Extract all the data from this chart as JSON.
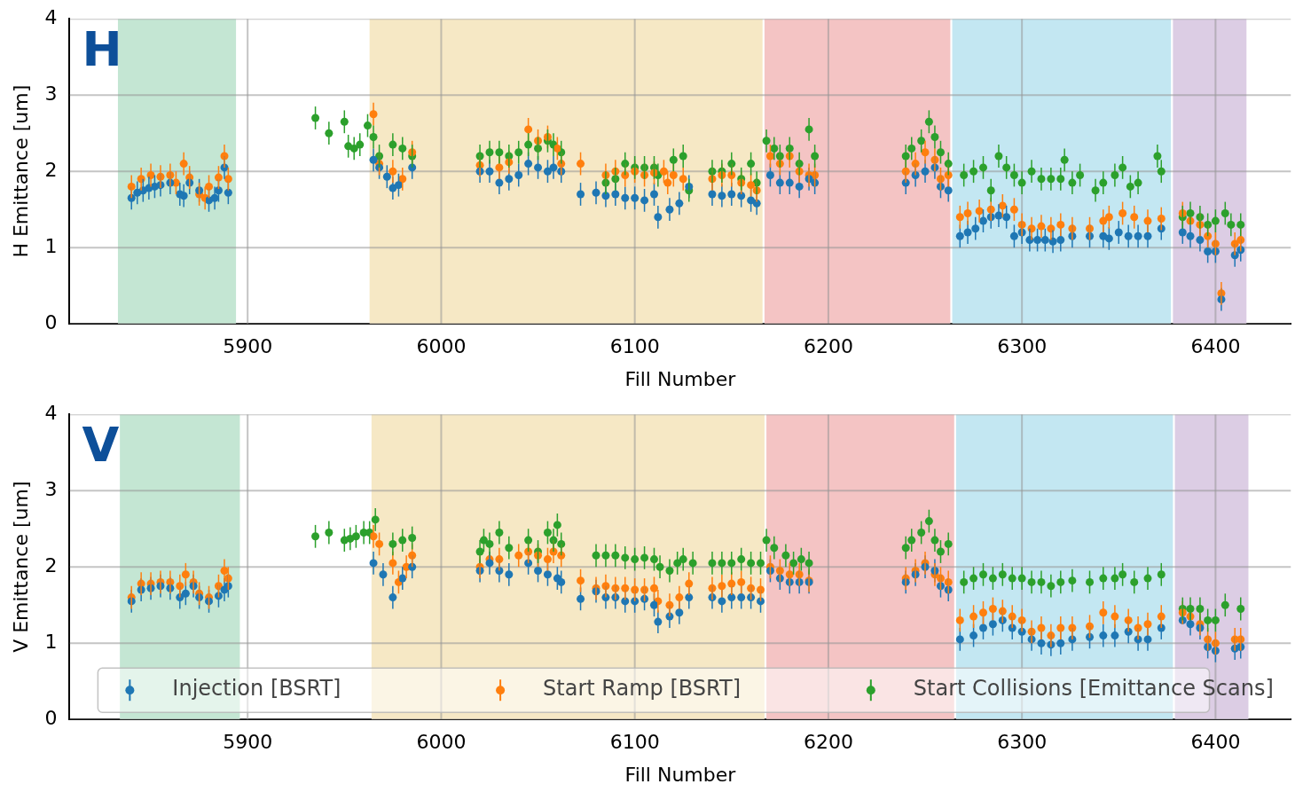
{
  "chart_data": [
    {
      "type": "scatter",
      "xlabel": "Fill Number",
      "ylabel": "H Emittance [um]",
      "annotations": [
        "H"
      ],
      "xlim": [
        5808,
        6439
      ],
      "xticks": [
        5900,
        6000,
        6100,
        6200,
        6300,
        6400
      ],
      "ylim": [
        0,
        4
      ],
      "yticks": [
        0,
        1,
        2,
        3,
        4
      ],
      "grid": true,
      "marker": "circle",
      "legend": false,
      "bands": [
        {
          "axis": "x",
          "from": 5833,
          "to": 5894,
          "color": "#c4e6d3"
        },
        {
          "axis": "x",
          "from": 5963,
          "to": 6166,
          "color": "#f6e8c5"
        },
        {
          "axis": "x",
          "from": 6167,
          "to": 6263,
          "color": "#f4c4c4"
        },
        {
          "axis": "x",
          "from": 6264,
          "to": 6377,
          "color": "#c3e7f2"
        },
        {
          "axis": "x",
          "from": 6378,
          "to": 6416,
          "color": "#dccde4"
        }
      ],
      "series": [
        {
          "color": "#1f77b4",
          "x": [
            5840,
            5843,
            5846,
            5849,
            5852,
            5855,
            5860,
            5865,
            5867,
            5870,
            5875,
            5880,
            5883,
            5885,
            5888,
            5890,
            5965,
            5968,
            5972,
            5975,
            5978,
            5985,
            6020,
            6025,
            6030,
            6035,
            6040,
            6045,
            6050,
            6055,
            6058,
            6062,
            6072,
            6080,
            6085,
            6090,
            6095,
            6100,
            6105,
            6110,
            6112,
            6118,
            6123,
            6128,
            6140,
            6145,
            6150,
            6155,
            6160,
            6163,
            6170,
            6175,
            6180,
            6185,
            6190,
            6193,
            6240,
            6245,
            6250,
            6255,
            6258,
            6262,
            6268,
            6272,
            6276,
            6280,
            6284,
            6288,
            6292,
            6296,
            6300,
            6304,
            6308,
            6312,
            6316,
            6320,
            6326,
            6335,
            6342,
            6345,
            6350,
            6355,
            6360,
            6365,
            6372,
            6383,
            6387,
            6392,
            6396,
            6400,
            6403,
            6410,
            6413
          ],
          "values": [
            1.65,
            1.72,
            1.75,
            1.78,
            1.8,
            1.82,
            1.85,
            1.7,
            1.68,
            1.85,
            1.75,
            1.62,
            1.65,
            1.75,
            2.05,
            1.72,
            2.15,
            2.05,
            1.93,
            1.78,
            1.82,
            2.05,
            2.0,
            2.0,
            1.85,
            1.9,
            1.95,
            2.1,
            2.05,
            2.0,
            2.05,
            2.0,
            1.7,
            1.72,
            1.68,
            1.7,
            1.65,
            1.65,
            1.62,
            1.7,
            1.4,
            1.5,
            1.58,
            1.8,
            1.7,
            1.68,
            1.7,
            1.68,
            1.62,
            1.58,
            1.95,
            1.85,
            1.85,
            1.8,
            1.9,
            1.85,
            1.85,
            1.95,
            2.0,
            2.05,
            1.8,
            1.75,
            1.15,
            1.2,
            1.25,
            1.35,
            1.4,
            1.42,
            1.4,
            1.15,
            1.2,
            1.1,
            1.1,
            1.1,
            1.08,
            1.1,
            1.15,
            1.15,
            1.15,
            1.12,
            1.2,
            1.15,
            1.15,
            1.15,
            1.25,
            1.2,
            1.15,
            1.1,
            0.95,
            0.95,
            0.32,
            0.9,
            0.97
          ],
          "errors": [
            0.15,
            0.15,
            0.15,
            0.15,
            0.15,
            0.15,
            0.15,
            0.15,
            0.15,
            0.15,
            0.15,
            0.15,
            0.15,
            0.15,
            0.15,
            0.15,
            0.15,
            0.15,
            0.15,
            0.15,
            0.15,
            0.15,
            0.15,
            0.15,
            0.15,
            0.15,
            0.15,
            0.15,
            0.15,
            0.15,
            0.15,
            0.15,
            0.15,
            0.15,
            0.15,
            0.15,
            0.15,
            0.15,
            0.15,
            0.15,
            0.15,
            0.15,
            0.15,
            0.15,
            0.15,
            0.15,
            0.15,
            0.15,
            0.15,
            0.15,
            0.15,
            0.15,
            0.15,
            0.15,
            0.15,
            0.15,
            0.15,
            0.15,
            0.15,
            0.15,
            0.15,
            0.15,
            0.15,
            0.15,
            0.15,
            0.15,
            0.15,
            0.15,
            0.15,
            0.15,
            0.15,
            0.15,
            0.15,
            0.15,
            0.15,
            0.15,
            0.15,
            0.15,
            0.15,
            0.15,
            0.15,
            0.15,
            0.15,
            0.15,
            0.15,
            0.15,
            0.15,
            0.15,
            0.15,
            0.15,
            0.15,
            0.15,
            0.15
          ]
        },
        {
          "color": "#ff7f0e",
          "x": [
            5840,
            5845,
            5850,
            5855,
            5860,
            5863,
            5867,
            5870,
            5875,
            5878,
            5880,
            5885,
            5888,
            5890,
            5965,
            5968,
            5975,
            5980,
            5985,
            6020,
            6030,
            6035,
            6045,
            6050,
            6055,
            6060,
            6062,
            6072,
            6085,
            6090,
            6095,
            6100,
            6105,
            6110,
            6115,
            6117,
            6120,
            6125,
            6140,
            6145,
            6150,
            6155,
            6160,
            6163,
            6170,
            6175,
            6180,
            6185,
            6190,
            6193,
            6240,
            6245,
            6250,
            6255,
            6258,
            6262,
            6268,
            6272,
            6278,
            6284,
            6290,
            6296,
            6300,
            6305,
            6310,
            6315,
            6320,
            6326,
            6335,
            6342,
            6345,
            6352,
            6358,
            6365,
            6372,
            6383,
            6387,
            6392,
            6396,
            6400,
            6403,
            6410,
            6413
          ],
          "values": [
            1.8,
            1.9,
            1.95,
            1.93,
            1.95,
            1.85,
            2.1,
            1.92,
            1.7,
            1.65,
            1.8,
            1.92,
            2.2,
            1.9,
            2.75,
            2.1,
            2.0,
            1.9,
            2.25,
            2.08,
            2.05,
            2.12,
            2.55,
            2.4,
            2.45,
            2.3,
            2.1,
            2.1,
            1.95,
            2.0,
            1.95,
            2.0,
            1.95,
            1.98,
            2.0,
            1.85,
            1.95,
            1.9,
            1.9,
            1.95,
            1.95,
            1.85,
            1.82,
            1.75,
            2.2,
            2.1,
            2.2,
            2.0,
            1.95,
            1.95,
            2.0,
            2.1,
            2.25,
            2.15,
            1.9,
            1.95,
            1.4,
            1.45,
            1.48,
            1.5,
            1.55,
            1.5,
            1.3,
            1.25,
            1.28,
            1.25,
            1.3,
            1.25,
            1.25,
            1.35,
            1.4,
            1.45,
            1.4,
            1.35,
            1.38,
            1.45,
            1.35,
            1.3,
            1.15,
            1.05,
            0.4,
            1.05,
            1.1
          ],
          "errors": [
            0.15,
            0.15,
            0.15,
            0.15,
            0.15,
            0.15,
            0.15,
            0.15,
            0.15,
            0.15,
            0.15,
            0.15,
            0.15,
            0.15,
            0.15,
            0.15,
            0.15,
            0.15,
            0.15,
            0.15,
            0.15,
            0.15,
            0.15,
            0.15,
            0.15,
            0.15,
            0.15,
            0.15,
            0.15,
            0.15,
            0.15,
            0.15,
            0.15,
            0.15,
            0.15,
            0.15,
            0.15,
            0.15,
            0.15,
            0.15,
            0.15,
            0.15,
            0.15,
            0.15,
            0.15,
            0.15,
            0.15,
            0.15,
            0.15,
            0.15,
            0.15,
            0.15,
            0.15,
            0.15,
            0.15,
            0.15,
            0.15,
            0.15,
            0.15,
            0.15,
            0.15,
            0.15,
            0.15,
            0.15,
            0.15,
            0.15,
            0.15,
            0.15,
            0.15,
            0.15,
            0.15,
            0.15,
            0.15,
            0.15,
            0.15,
            0.15,
            null,
            0.15,
            0.15,
            0.15,
            0.15,
            0.15,
            0.15
          ]
        },
        {
          "color": "#2ca02c",
          "x": [
            5935,
            5942,
            5950,
            5952,
            5955,
            5958,
            5962,
            5965,
            5968,
            5975,
            5980,
            5985,
            6020,
            6025,
            6030,
            6035,
            6040,
            6045,
            6050,
            6055,
            6058,
            6062,
            6085,
            6090,
            6095,
            6100,
            6105,
            6110,
            6112,
            6120,
            6125,
            6128,
            6140,
            6145,
            6150,
            6155,
            6160,
            6163,
            6168,
            6172,
            6175,
            6180,
            6185,
            6190,
            6193,
            6240,
            6243,
            6248,
            6252,
            6255,
            6258,
            6262,
            6270,
            6275,
            6280,
            6284,
            6288,
            6292,
            6296,
            6300,
            6305,
            6310,
            6315,
            6320,
            6322,
            6326,
            6330,
            6338,
            6342,
            6348,
            6352,
            6356,
            6360,
            6370,
            6372,
            6383,
            6387,
            6392,
            6396,
            6400,
            6405,
            6408,
            6413
          ],
          "values": [
            2.7,
            2.5,
            2.65,
            2.33,
            2.3,
            2.35,
            2.6,
            2.45,
            2.2,
            2.35,
            2.3,
            2.2,
            2.2,
            2.25,
            2.25,
            2.2,
            2.25,
            2.35,
            2.3,
            2.4,
            2.35,
            2.25,
            1.85,
            1.9,
            2.1,
            2.05,
            2.05,
            2.05,
            1.95,
            2.15,
            2.2,
            1.75,
            2.0,
            2.0,
            2.1,
            1.9,
            2.1,
            1.85,
            2.4,
            2.3,
            2.2,
            2.3,
            2.1,
            2.55,
            2.2,
            2.2,
            2.3,
            2.4,
            2.65,
            2.45,
            2.25,
            2.1,
            1.95,
            2.0,
            2.05,
            1.75,
            2.2,
            2.05,
            1.95,
            1.85,
            2.0,
            1.9,
            1.9,
            1.9,
            2.15,
            1.85,
            1.95,
            1.75,
            1.85,
            1.95,
            2.05,
            1.8,
            1.85,
            2.2,
            2.0,
            1.4,
            1.45,
            1.4,
            1.3,
            1.35,
            1.45,
            1.3,
            1.3
          ],
          "errors": [
            0.15,
            0.15,
            0.15,
            0.15,
            0.15,
            0.15,
            0.15,
            0.15,
            0.15,
            0.15,
            0.15,
            0.15,
            0.15,
            0.15,
            0.15,
            0.15,
            0.15,
            0.15,
            0.15,
            0.15,
            0.15,
            0.15,
            0.15,
            0.15,
            0.15,
            0.15,
            0.15,
            0.15,
            0.15,
            0.15,
            0.15,
            0.15,
            0.15,
            0.15,
            0.15,
            0.15,
            0.15,
            0.15,
            0.15,
            0.15,
            0.15,
            0.15,
            0.15,
            0.15,
            0.15,
            0.15,
            0.15,
            0.15,
            0.15,
            0.15,
            0.15,
            0.15,
            0.15,
            0.15,
            0.15,
            0.15,
            0.15,
            0.15,
            0.15,
            0.15,
            0.15,
            0.15,
            0.15,
            0.15,
            0.15,
            0.15,
            0.15,
            0.15,
            0.15,
            0.15,
            0.15,
            0.15,
            0.15,
            0.15,
            0.15,
            0.15,
            0.15,
            0.15,
            0.15,
            0.15,
            0.15,
            0.15,
            0.15
          ]
        }
      ]
    },
    {
      "type": "scatter",
      "xlabel": "Fill Number",
      "ylabel": "V Emittance [um]",
      "annotations": [
        "V"
      ],
      "xlim": [
        5808,
        6439
      ],
      "xticks": [
        5900,
        6000,
        6100,
        6200,
        6300,
        6400
      ],
      "ylim": [
        0,
        4
      ],
      "yticks": [
        0,
        1,
        2,
        3,
        4
      ],
      "grid": true,
      "marker": "circle",
      "legend": "bottom",
      "bands": [
        {
          "axis": "x",
          "from": 5834,
          "to": 5896,
          "color": "#c4e6d3"
        },
        {
          "axis": "x",
          "from": 5964,
          "to": 6167,
          "color": "#f6e8c5"
        },
        {
          "axis": "x",
          "from": 6168,
          "to": 6265,
          "color": "#f4c4c4"
        },
        {
          "axis": "x",
          "from": 6266,
          "to": 6378,
          "color": "#c3e7f2"
        },
        {
          "axis": "x",
          "from": 6379,
          "to": 6417,
          "color": "#dccde4"
        }
      ],
      "series": [
        {
          "name": "Injection [BSRT]",
          "color": "#1f77b4",
          "x": [
            5840,
            5845,
            5850,
            5855,
            5860,
            5865,
            5868,
            5872,
            5875,
            5880,
            5885,
            5888,
            5890,
            5965,
            5970,
            5975,
            5980,
            5985,
            6020,
            6025,
            6030,
            6035,
            6045,
            6050,
            6055,
            6060,
            6062,
            6072,
            6080,
            6085,
            6090,
            6095,
            6100,
            6105,
            6110,
            6112,
            6118,
            6123,
            6128,
            6140,
            6145,
            6150,
            6155,
            6160,
            6165,
            6170,
            6175,
            6180,
            6185,
            6190,
            6240,
            6245,
            6250,
            6255,
            6258,
            6262,
            6268,
            6275,
            6280,
            6285,
            6290,
            6295,
            6300,
            6305,
            6310,
            6315,
            6320,
            6326,
            6335,
            6342,
            6348,
            6355,
            6360,
            6365,
            6372,
            6383,
            6387,
            6392,
            6396,
            6400,
            6410,
            6413
          ],
          "values": [
            1.55,
            1.7,
            1.72,
            1.75,
            1.72,
            1.6,
            1.65,
            1.75,
            1.6,
            1.55,
            1.62,
            1.7,
            1.75,
            2.05,
            1.9,
            1.6,
            1.85,
            2.0,
            1.95,
            2.05,
            1.95,
            1.9,
            2.05,
            1.95,
            1.9,
            1.85,
            1.8,
            1.58,
            1.68,
            1.6,
            1.6,
            1.55,
            1.55,
            1.58,
            1.5,
            1.28,
            1.35,
            1.4,
            1.6,
            1.6,
            1.55,
            1.6,
            1.6,
            1.6,
            1.55,
            1.95,
            1.85,
            1.8,
            1.8,
            1.8,
            1.8,
            1.9,
            2.0,
            1.95,
            1.75,
            1.7,
            1.05,
            1.1,
            1.2,
            1.25,
            1.3,
            1.2,
            1.15,
            1.05,
            1.0,
            0.98,
            1.0,
            1.05,
            1.08,
            1.1,
            1.1,
            1.15,
            1.05,
            1.05,
            1.2,
            1.3,
            1.25,
            1.2,
            0.95,
            0.9,
            0.93,
            0.95
          ],
          "errors": [
            0.15,
            0.15,
            0.15,
            0.15,
            0.15,
            0.15,
            0.15,
            0.15,
            0.15,
            0.15,
            0.15,
            0.15,
            0.15,
            0.15,
            0.15,
            0.15,
            0.15,
            0.15,
            0.15,
            0.15,
            0.15,
            0.15,
            0.15,
            0.15,
            0.15,
            0.15,
            0.15,
            0.15,
            0.15,
            0.15,
            0.15,
            0.15,
            0.15,
            0.15,
            0.15,
            0.15,
            0.15,
            0.15,
            0.15,
            0.15,
            0.15,
            0.15,
            0.15,
            0.15,
            0.15,
            0.15,
            0.15,
            0.15,
            0.15,
            0.15,
            0.15,
            0.15,
            0.15,
            0.15,
            0.15,
            0.15,
            0.15,
            0.15,
            0.15,
            0.15,
            0.15,
            0.15,
            0.15,
            0.15,
            0.15,
            0.15,
            0.15,
            0.15,
            0.15,
            0.15,
            0.15,
            0.15,
            0.15,
            0.15,
            0.15,
            null,
            0.15,
            0.15,
            0.15,
            0.15,
            0.15,
            0.15
          ]
        },
        {
          "name": "Start Ramp [BSRT]",
          "color": "#ff7f0e",
          "x": [
            5840,
            5845,
            5850,
            5855,
            5860,
            5865,
            5868,
            5872,
            5875,
            5880,
            5885,
            5888,
            5890,
            5965,
            5968,
            5975,
            5978,
            5982,
            5985,
            6020,
            6025,
            6030,
            6040,
            6045,
            6050,
            6055,
            6058,
            6062,
            6072,
            6080,
            6085,
            6090,
            6095,
            6100,
            6105,
            6110,
            6112,
            6118,
            6123,
            6128,
            6140,
            6145,
            6150,
            6155,
            6160,
            6165,
            6170,
            6175,
            6180,
            6185,
            6190,
            6240,
            6245,
            6250,
            6255,
            6258,
            6262,
            6268,
            6275,
            6280,
            6285,
            6290,
            6295,
            6300,
            6305,
            6310,
            6315,
            6320,
            6326,
            6335,
            6342,
            6348,
            6355,
            6360,
            6365,
            6372,
            6383,
            6387,
            6392,
            6396,
            6400,
            6410,
            6413
          ],
          "values": [
            1.6,
            1.78,
            1.78,
            1.8,
            1.8,
            1.75,
            1.9,
            1.8,
            1.65,
            1.6,
            1.75,
            1.95,
            1.85,
            2.4,
            2.3,
            2.05,
            1.8,
            2.0,
            2.15,
            2.0,
            2.1,
            2.1,
            2.15,
            2.2,
            2.15,
            2.1,
            2.2,
            2.15,
            1.82,
            1.72,
            1.75,
            1.72,
            1.72,
            1.7,
            1.7,
            1.72,
            1.55,
            1.5,
            1.6,
            1.78,
            1.72,
            1.75,
            1.78,
            1.8,
            1.72,
            1.7,
            2.0,
            1.95,
            1.9,
            1.9,
            1.82,
            1.85,
            1.95,
            2.05,
            1.9,
            1.85,
            1.8,
            1.3,
            1.35,
            1.4,
            1.45,
            1.42,
            1.35,
            1.3,
            1.15,
            1.2,
            1.1,
            1.2,
            1.2,
            1.22,
            1.4,
            1.35,
            1.3,
            1.2,
            1.25,
            1.35,
            1.4,
            1.35,
            1.25,
            1.05,
            1.0,
            1.05,
            1.05
          ],
          "errors": [
            0.15,
            0.15,
            0.15,
            0.15,
            0.15,
            0.15,
            0.15,
            0.15,
            0.15,
            0.15,
            0.15,
            0.15,
            0.15,
            0.15,
            0.15,
            0.15,
            0.15,
            0.15,
            0.15,
            0.15,
            null,
            0.15,
            0.15,
            0.15,
            0.15,
            0.15,
            0.15,
            0.15,
            0.15,
            0.15,
            0.15,
            0.15,
            0.15,
            0.15,
            0.15,
            0.15,
            0.15,
            0.15,
            0.15,
            0.15,
            0.15,
            0.15,
            0.15,
            0.15,
            0.15,
            0.15,
            0.15,
            0.15,
            0.15,
            0.15,
            0.15,
            0.15,
            0.15,
            0.15,
            0.15,
            0.15,
            0.15,
            0.15,
            0.15,
            0.15,
            0.15,
            0.15,
            0.15,
            0.15,
            0.15,
            0.15,
            0.15,
            0.15,
            0.15,
            0.15,
            0.15,
            0.15,
            0.15,
            0.15,
            0.15,
            0.15,
            0.15,
            null,
            0.15,
            0.15,
            0.15,
            0.15,
            0.15
          ]
        },
        {
          "name": "Start Collisions [Emittance Scans]",
          "color": "#2ca02c",
          "x": [
            5935,
            5942,
            5950,
            5953,
            5956,
            5960,
            5963,
            5966,
            5975,
            5980,
            5985,
            6020,
            6022,
            6025,
            6030,
            6035,
            6045,
            6050,
            6055,
            6058,
            6060,
            6062,
            6080,
            6085,
            6090,
            6095,
            6100,
            6105,
            6110,
            6113,
            6118,
            6122,
            6125,
            6130,
            6140,
            6145,
            6150,
            6155,
            6160,
            6165,
            6168,
            6172,
            6178,
            6182,
            6186,
            6190,
            6240,
            6243,
            6248,
            6252,
            6255,
            6258,
            6262,
            6270,
            6275,
            6280,
            6285,
            6290,
            6295,
            6300,
            6305,
            6310,
            6315,
            6320,
            6326,
            6335,
            6342,
            6348,
            6352,
            6358,
            6365,
            6372,
            6383,
            6387,
            6392,
            6396,
            6400,
            6405,
            6413
          ],
          "values": [
            2.4,
            2.45,
            2.35,
            2.37,
            2.4,
            2.45,
            2.45,
            2.62,
            2.3,
            2.35,
            2.38,
            2.2,
            2.35,
            2.3,
            2.45,
            2.25,
            2.35,
            2.2,
            2.45,
            2.35,
            2.55,
            2.3,
            2.15,
            2.15,
            2.15,
            2.12,
            2.1,
            2.12,
            2.1,
            2.0,
            1.95,
            2.05,
            2.1,
            2.05,
            2.05,
            2.05,
            2.05,
            2.1,
            2.05,
            2.05,
            2.35,
            2.25,
            2.15,
            2.05,
            2.1,
            2.05,
            2.25,
            2.35,
            2.45,
            2.6,
            2.35,
            2.2,
            2.3,
            1.8,
            1.85,
            1.9,
            1.85,
            1.9,
            1.85,
            1.85,
            1.8,
            1.8,
            1.75,
            1.8,
            1.82,
            1.8,
            1.85,
            1.85,
            1.9,
            1.8,
            1.85,
            1.9,
            1.45,
            1.45,
            1.45,
            1.3,
            1.3,
            1.5,
            1.45
          ],
          "errors": [
            0.15,
            0.15,
            0.15,
            0.15,
            0.15,
            0.15,
            0.15,
            0.15,
            0.15,
            0.15,
            0.15,
            0.15,
            0.15,
            0.15,
            0.15,
            0.15,
            0.15,
            0.15,
            0.15,
            0.15,
            0.15,
            0.15,
            0.15,
            0.15,
            0.15,
            0.15,
            0.15,
            0.15,
            0.15,
            0.15,
            0.15,
            0.15,
            0.15,
            0.15,
            0.15,
            0.15,
            0.15,
            0.15,
            0.15,
            0.15,
            0.15,
            0.15,
            0.15,
            0.15,
            0.15,
            0.15,
            0.15,
            0.15,
            0.15,
            0.15,
            0.15,
            0.15,
            0.15,
            0.15,
            0.15,
            0.15,
            0.15,
            0.15,
            0.15,
            0.15,
            0.15,
            0.15,
            0.15,
            0.15,
            0.15,
            0.15,
            0.15,
            0.15,
            0.15,
            0.15,
            0.15,
            0.15,
            0.15,
            0.15,
            0.15,
            0.15,
            0.15,
            0.15,
            0.15
          ]
        }
      ]
    }
  ]
}
